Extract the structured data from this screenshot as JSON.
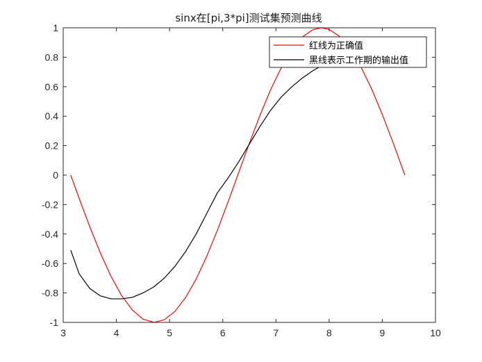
{
  "chart_data": {
    "type": "line",
    "title": "sinx在[pi,3*pi]测试集预测曲线",
    "xlabel": "",
    "ylabel": "",
    "xlim": [
      3,
      10
    ],
    "ylim": [
      -1,
      1
    ],
    "xticks": [
      "3",
      "4",
      "5",
      "6",
      "7",
      "8",
      "9",
      "10"
    ],
    "yticks": [
      "-1",
      "-0.8",
      "-0.6",
      "-0.4",
      "-0.2",
      "0",
      "0.2",
      "0.4",
      "0.6",
      "0.8",
      "1"
    ],
    "grid": false,
    "legend_position": "top-right",
    "series": [
      {
        "name": "红线为正确值",
        "color": "#ff0000",
        "x": [
          3.1416,
          3.3,
          3.5,
          3.7,
          3.9,
          4.1,
          4.3,
          4.5,
          4.7124,
          4.9,
          5.1,
          5.3,
          5.5,
          5.7,
          5.9,
          6.1,
          6.2832,
          6.5,
          6.7,
          6.9,
          7.1,
          7.3,
          7.5,
          7.7,
          7.854,
          8.0,
          8.2,
          8.4,
          8.6,
          8.8,
          9.0,
          9.2,
          9.4248
        ],
        "y": [
          0.0,
          -0.158,
          -0.351,
          -0.53,
          -0.688,
          -0.818,
          -0.916,
          -0.978,
          -1.0,
          -0.982,
          -0.926,
          -0.832,
          -0.706,
          -0.551,
          -0.374,
          -0.182,
          0.0,
          0.215,
          0.405,
          0.579,
          0.729,
          0.85,
          0.938,
          0.988,
          1.0,
          0.989,
          0.941,
          0.855,
          0.734,
          0.585,
          0.412,
          0.223,
          0.0
        ]
      },
      {
        "name": "黑线表示工作期的输出值",
        "color": "#000000",
        "x": [
          3.1416,
          3.3,
          3.5,
          3.7,
          3.9,
          4.1,
          4.3,
          4.5,
          4.7,
          4.9,
          5.1,
          5.3,
          5.5,
          5.7,
          5.9,
          6.1,
          6.3,
          6.5,
          6.7,
          6.9,
          7.1,
          7.3,
          7.5,
          7.7,
          7.9,
          8.05
        ],
        "y": [
          -0.51,
          -0.67,
          -0.77,
          -0.82,
          -0.84,
          -0.84,
          -0.83,
          -0.8,
          -0.76,
          -0.7,
          -0.62,
          -0.52,
          -0.4,
          -0.26,
          -0.12,
          -0.02,
          0.09,
          0.21,
          0.33,
          0.44,
          0.53,
          0.6,
          0.66,
          0.71,
          0.75,
          0.78
        ]
      }
    ]
  }
}
